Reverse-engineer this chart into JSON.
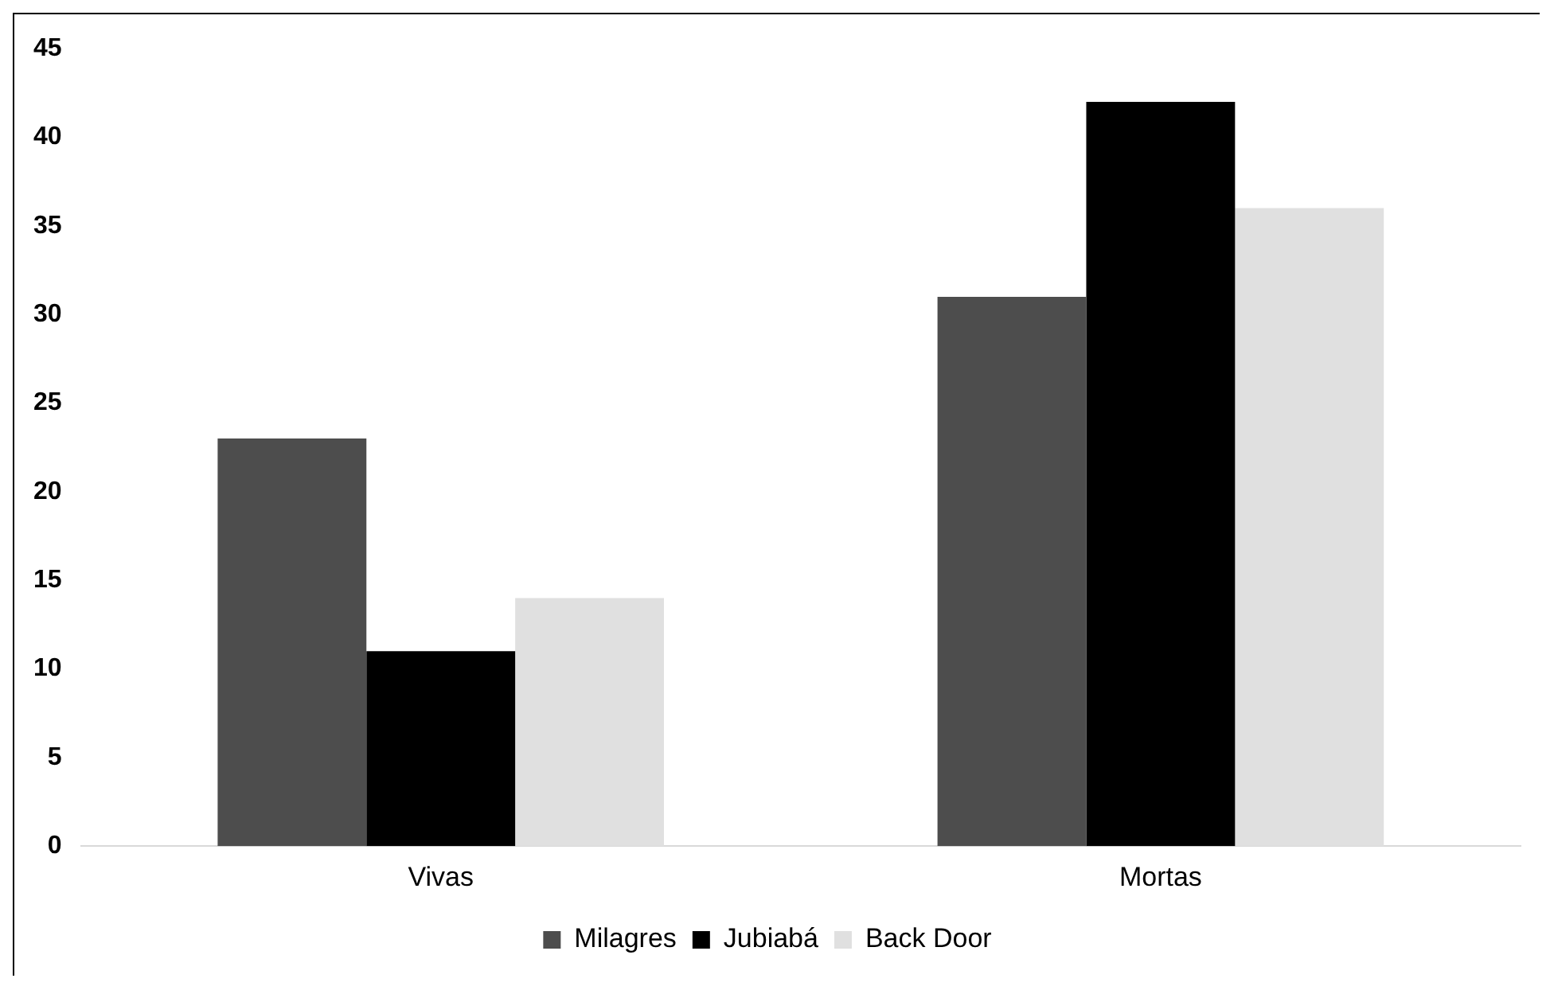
{
  "chart_data": {
    "type": "bar",
    "categories": [
      "Vivas",
      "Mortas"
    ],
    "series": [
      {
        "name": "Milagres",
        "color": "#4d4d4d",
        "values": [
          23,
          31
        ]
      },
      {
        "name": "Jubiabá",
        "color": "#000000",
        "values": [
          11,
          42
        ]
      },
      {
        "name": "Back Door",
        "color": "#e0e0e0",
        "values": [
          14,
          36
        ]
      }
    ],
    "ylim": [
      0,
      45
    ],
    "yticks": [
      0,
      5,
      10,
      15,
      20,
      25,
      30,
      35,
      40,
      45
    ],
    "grid": false,
    "legend": "bottom"
  }
}
